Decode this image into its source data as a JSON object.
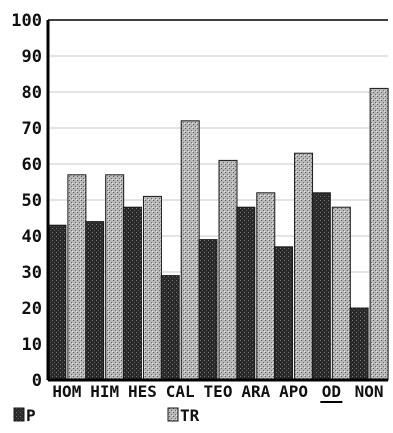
{
  "chart_data": {
    "type": "bar",
    "title": "",
    "xlabel": "",
    "ylabel": "",
    "ylim": [
      0,
      100
    ],
    "yticks": [
      0,
      10,
      20,
      30,
      40,
      50,
      60,
      70,
      80,
      90,
      100
    ],
    "tick_labels": [
      "0",
      "10",
      "20",
      "30",
      "40",
      "50",
      "60",
      "70",
      "80",
      "90",
      "100"
    ],
    "grid": true,
    "legend_position": "bottom-left",
    "categories": [
      "HOM",
      "HIM",
      "HES",
      "CAL",
      "TEO",
      "ARA",
      "APO",
      "OD",
      "NON"
    ],
    "underlined_category": "OD",
    "series": [
      {
        "name": "P",
        "color": "#2a2a2a",
        "values": [
          43,
          44,
          48,
          29,
          39,
          48,
          37,
          52,
          20
        ]
      },
      {
        "name": "TR",
        "color": "#9a9a9a",
        "values": [
          57,
          57,
          51,
          72,
          61,
          52,
          63,
          48,
          81
        ]
      }
    ]
  }
}
